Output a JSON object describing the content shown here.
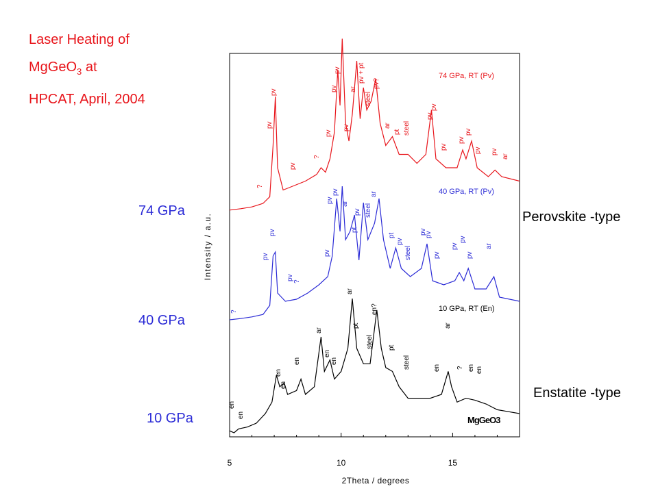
{
  "slide": {
    "title_line1": "Laser Heating of",
    "title_line2_pre": "MgGeO",
    "title_line2_sub": "3",
    "title_line2_post": " at",
    "title_line3": "HPCAT, April, 2004",
    "pressure_labels": [
      "74 GPa",
      "40 GPa",
      "10 GPa"
    ],
    "phase_labels": [
      "Perovskite -type",
      "Enstatite -type"
    ],
    "colors": {
      "title": "#e8151b",
      "pressure": "#2b2bd6"
    }
  },
  "chart_data": {
    "type": "line",
    "xlabel": "2Theta /  degrees",
    "ylabel": "Intensity / a.u.",
    "xlim": [
      5,
      18
    ],
    "xticks": [
      5,
      10,
      15
    ],
    "grid": false,
    "sample_label": "MgGeO3",
    "series": [
      {
        "name": "74 GPa,  RT (Pv)",
        "color": "#e8151b",
        "points": [
          [
            5.0,
            0.05
          ],
          [
            5.5,
            0.08
          ],
          [
            6.0,
            0.12
          ],
          [
            6.5,
            0.2
          ],
          [
            6.8,
            0.35
          ],
          [
            6.95,
            1.5
          ],
          [
            7.05,
            2.6
          ],
          [
            7.15,
            1.0
          ],
          [
            7.4,
            0.5
          ],
          [
            7.9,
            0.6
          ],
          [
            8.4,
            0.7
          ],
          [
            8.9,
            0.85
          ],
          [
            9.1,
            1.0
          ],
          [
            9.3,
            0.9
          ],
          [
            9.5,
            1.2
          ],
          [
            9.7,
            1.8
          ],
          [
            9.85,
            3.2
          ],
          [
            9.95,
            2.4
          ],
          [
            10.05,
            3.9
          ],
          [
            10.2,
            2.0
          ],
          [
            10.35,
            1.6
          ],
          [
            10.5,
            2.2
          ],
          [
            10.7,
            3.4
          ],
          [
            10.85,
            2.1
          ],
          [
            11.0,
            2.8
          ],
          [
            11.15,
            2.3
          ],
          [
            11.35,
            2.5
          ],
          [
            11.55,
            3.0
          ],
          [
            11.75,
            2.0
          ],
          [
            12.0,
            1.5
          ],
          [
            12.3,
            1.7
          ],
          [
            12.6,
            1.3
          ],
          [
            13.0,
            1.3
          ],
          [
            13.4,
            1.1
          ],
          [
            13.8,
            1.3
          ],
          [
            14.05,
            2.3
          ],
          [
            14.25,
            1.2
          ],
          [
            14.7,
            1.0
          ],
          [
            15.2,
            1.0
          ],
          [
            15.45,
            1.4
          ],
          [
            15.6,
            1.2
          ],
          [
            15.85,
            1.6
          ],
          [
            16.1,
            1.0
          ],
          [
            16.6,
            0.8
          ],
          [
            16.9,
            0.95
          ],
          [
            17.2,
            0.8
          ],
          [
            18.0,
            0.7
          ]
        ]
      },
      {
        "name": "40 GPa,  RT (Pv)",
        "color": "#2b2bd6",
        "points": [
          [
            5.0,
            0.05
          ],
          [
            5.5,
            0.08
          ],
          [
            6.0,
            0.12
          ],
          [
            6.5,
            0.18
          ],
          [
            6.8,
            0.4
          ],
          [
            6.95,
            1.6
          ],
          [
            7.05,
            1.7
          ],
          [
            7.15,
            0.7
          ],
          [
            7.5,
            0.5
          ],
          [
            8.0,
            0.55
          ],
          [
            8.5,
            0.7
          ],
          [
            9.0,
            0.9
          ],
          [
            9.4,
            1.1
          ],
          [
            9.6,
            1.6
          ],
          [
            9.8,
            3.0
          ],
          [
            9.95,
            2.2
          ],
          [
            10.05,
            3.3
          ],
          [
            10.2,
            2.0
          ],
          [
            10.4,
            2.2
          ],
          [
            10.6,
            2.6
          ],
          [
            10.8,
            1.5
          ],
          [
            11.0,
            2.9
          ],
          [
            11.2,
            2.0
          ],
          [
            11.5,
            2.4
          ],
          [
            11.7,
            3.0
          ],
          [
            11.9,
            2.0
          ],
          [
            12.2,
            1.3
          ],
          [
            12.45,
            1.8
          ],
          [
            12.7,
            1.3
          ],
          [
            13.1,
            1.1
          ],
          [
            13.6,
            1.3
          ],
          [
            13.85,
            1.9
          ],
          [
            14.1,
            1.0
          ],
          [
            14.6,
            0.9
          ],
          [
            15.1,
            1.0
          ],
          [
            15.3,
            1.2
          ],
          [
            15.5,
            1.0
          ],
          [
            15.7,
            1.3
          ],
          [
            16.0,
            0.8
          ],
          [
            16.5,
            0.8
          ],
          [
            16.85,
            1.1
          ],
          [
            17.1,
            0.6
          ],
          [
            18.0,
            0.5
          ]
        ]
      },
      {
        "name": "10 GPa,  RT (En)",
        "color": "#000000",
        "points": [
          [
            5.0,
            0.05
          ],
          [
            5.2,
            0.0
          ],
          [
            5.4,
            0.1
          ],
          [
            5.8,
            0.15
          ],
          [
            6.2,
            0.25
          ],
          [
            6.6,
            0.5
          ],
          [
            6.9,
            0.8
          ],
          [
            7.1,
            1.5
          ],
          [
            7.25,
            1.2
          ],
          [
            7.45,
            1.3
          ],
          [
            7.6,
            1.0
          ],
          [
            8.0,
            1.1
          ],
          [
            8.2,
            1.4
          ],
          [
            8.4,
            1.0
          ],
          [
            8.8,
            1.2
          ],
          [
            9.1,
            2.5
          ],
          [
            9.25,
            1.6
          ],
          [
            9.5,
            1.9
          ],
          [
            9.7,
            1.4
          ],
          [
            10.0,
            1.6
          ],
          [
            10.3,
            2.2
          ],
          [
            10.5,
            3.5
          ],
          [
            10.7,
            2.2
          ],
          [
            11.0,
            1.8
          ],
          [
            11.3,
            1.8
          ],
          [
            11.6,
            3.2
          ],
          [
            11.8,
            2.2
          ],
          [
            12.0,
            1.7
          ],
          [
            12.3,
            1.6
          ],
          [
            12.6,
            1.2
          ],
          [
            13.0,
            0.9
          ],
          [
            13.5,
            0.9
          ],
          [
            14.0,
            0.9
          ],
          [
            14.5,
            1.0
          ],
          [
            14.8,
            1.6
          ],
          [
            14.95,
            1.2
          ],
          [
            15.2,
            0.8
          ],
          [
            15.6,
            0.9
          ],
          [
            16.0,
            0.85
          ],
          [
            16.5,
            0.75
          ],
          [
            17.0,
            0.6
          ],
          [
            17.5,
            0.55
          ],
          [
            18.0,
            0.5
          ]
        ]
      }
    ],
    "peak_labels": {
      "74 GPa": [
        "?",
        "pv",
        "pv",
        "pv",
        "?",
        "pv",
        "pv",
        "pv",
        "pv",
        "ar",
        "pv + pt",
        "pv?",
        "steel",
        "ar",
        "pt",
        "steel",
        "pv",
        "pv",
        "pv",
        "pv",
        "pv",
        "pv",
        "pv",
        "ar"
      ],
      "40 GPa": [
        "?",
        "pv",
        "pv",
        "pv",
        "?",
        "pv",
        "pv",
        "pv",
        "ar",
        "pt",
        "pv",
        "steel",
        "ar",
        "pt",
        "pv",
        "steel",
        "pv",
        "pv",
        "pv",
        "pv",
        "pv",
        "pv",
        "ar"
      ],
      "10 GPa": [
        "en",
        "en",
        "en",
        "en",
        "en",
        "ar",
        "en",
        "en",
        "ar",
        "pt",
        "en?",
        "steel",
        "pt",
        "steel",
        "en",
        "ar",
        "?",
        "en",
        "en"
      ]
    }
  }
}
